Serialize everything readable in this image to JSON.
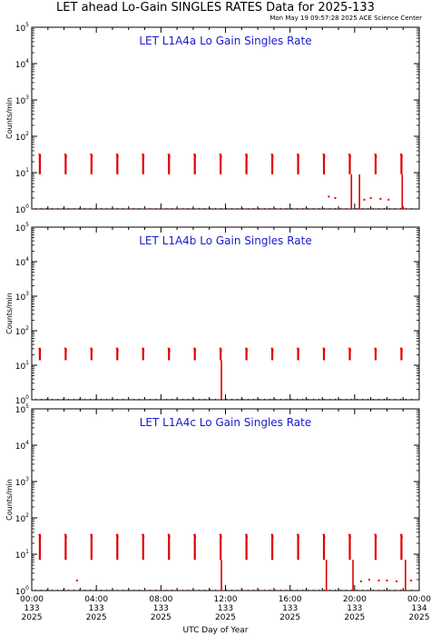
{
  "header": {
    "title": "LET ahead Lo-Gain SINGLES RATES Data for 2025-133",
    "timestamp": "Mon May 19 09:57:28 2025 ACE Science Center"
  },
  "colors": {
    "data": "#e00000",
    "panel_label": "#1a1acc",
    "axes": "#000000"
  },
  "chart_data": [
    {
      "type": "line",
      "title": "LET L1A4a Lo Gain Singles Rate",
      "ylabel": "Counts/min",
      "xlabel": "UTC Day of Year",
      "y_scale": "log",
      "ylim": [
        1,
        100000
      ],
      "xlim": [
        0,
        24
      ],
      "y_tick_labels": [
        "10^0",
        "10^1",
        "10^2",
        "10^3",
        "10^4",
        "10^5"
      ],
      "spike_times_hr": [
        0.5,
        2.1,
        3.7,
        5.3,
        6.9,
        8.5,
        10.1,
        11.7,
        13.3,
        14.9,
        16.5,
        18.1,
        19.7,
        21.3,
        22.9
      ],
      "spike_top": 33,
      "spike_bottom": 9,
      "dropouts": [
        {
          "x": 19.8,
          "to": 1
        },
        {
          "x": 20.3,
          "to": 1
        },
        {
          "x": 22.95,
          "to": 1
        }
      ],
      "low_points": [
        {
          "x": 18.4,
          "y": 2.2
        },
        {
          "x": 18.8,
          "y": 2.0
        },
        {
          "x": 20.6,
          "y": 1.8
        },
        {
          "x": 21.0,
          "y": 2.0
        },
        {
          "x": 21.6,
          "y": 1.9
        },
        {
          "x": 22.1,
          "y": 1.8
        }
      ]
    },
    {
      "type": "line",
      "title": "LET L1A4b Lo Gain Singles Rate",
      "ylabel": "Counts/min",
      "xlabel": "UTC Day of Year",
      "y_scale": "log",
      "ylim": [
        1,
        100000
      ],
      "xlim": [
        0,
        24
      ],
      "y_tick_labels": [
        "10^0",
        "10^1",
        "10^2",
        "10^3",
        "10^4",
        "10^5"
      ],
      "spike_times_hr": [
        0.5,
        2.1,
        3.7,
        5.3,
        6.9,
        8.5,
        10.1,
        11.7,
        13.3,
        14.9,
        16.5,
        18.1,
        19.7,
        21.3,
        22.9
      ],
      "spike_top": 32,
      "spike_bottom": 14,
      "dropouts": [
        {
          "x": 11.75,
          "to": 1
        }
      ],
      "low_points": []
    },
    {
      "type": "line",
      "title": "LET L1A4c Lo Gain Singles Rate",
      "ylabel": "Counts/min",
      "xlabel": "UTC Day of Year",
      "y_scale": "log",
      "ylim": [
        1,
        100000
      ],
      "xlim": [
        0,
        24
      ],
      "y_tick_labels": [
        "10^0",
        "10^1",
        "10^2",
        "10^3",
        "10^4",
        "10^5"
      ],
      "spike_times_hr": [
        0.5,
        2.1,
        3.7,
        5.3,
        6.9,
        8.5,
        10.1,
        11.7,
        13.3,
        14.9,
        16.5,
        18.1,
        19.7,
        21.3,
        22.9
      ],
      "spike_top": 36,
      "spike_bottom": 7,
      "dropouts": [
        {
          "x": 11.75,
          "to": 1
        },
        {
          "x": 18.25,
          "to": 1
        },
        {
          "x": 19.9,
          "to": 1
        },
        {
          "x": 23.15,
          "to": 1
        }
      ],
      "low_points": [
        {
          "x": 2.8,
          "y": 1.9
        },
        {
          "x": 20.4,
          "y": 1.8
        },
        {
          "x": 20.9,
          "y": 2.0
        },
        {
          "x": 21.5,
          "y": 1.9
        },
        {
          "x": 22.0,
          "y": 1.9
        },
        {
          "x": 22.6,
          "y": 1.8
        },
        {
          "x": 23.5,
          "y": 1.9
        }
      ]
    }
  ],
  "x_axis": {
    "xlabel": "UTC Day of Year",
    "ticks": [
      {
        "hr": 0,
        "time": "00:00",
        "doy": "133",
        "year": "2025"
      },
      {
        "hr": 4,
        "time": "04:00",
        "doy": "133",
        "year": "2025"
      },
      {
        "hr": 8,
        "time": "08:00",
        "doy": "133",
        "year": "2025"
      },
      {
        "hr": 12,
        "time": "12:00",
        "doy": "133",
        "year": "2025"
      },
      {
        "hr": 16,
        "time": "16:00",
        "doy": "133",
        "year": "2025"
      },
      {
        "hr": 20,
        "time": "20:00",
        "doy": "133",
        "year": "2025"
      },
      {
        "hr": 24,
        "time": "00:00",
        "doy": "134",
        "year": "2025"
      }
    ]
  }
}
